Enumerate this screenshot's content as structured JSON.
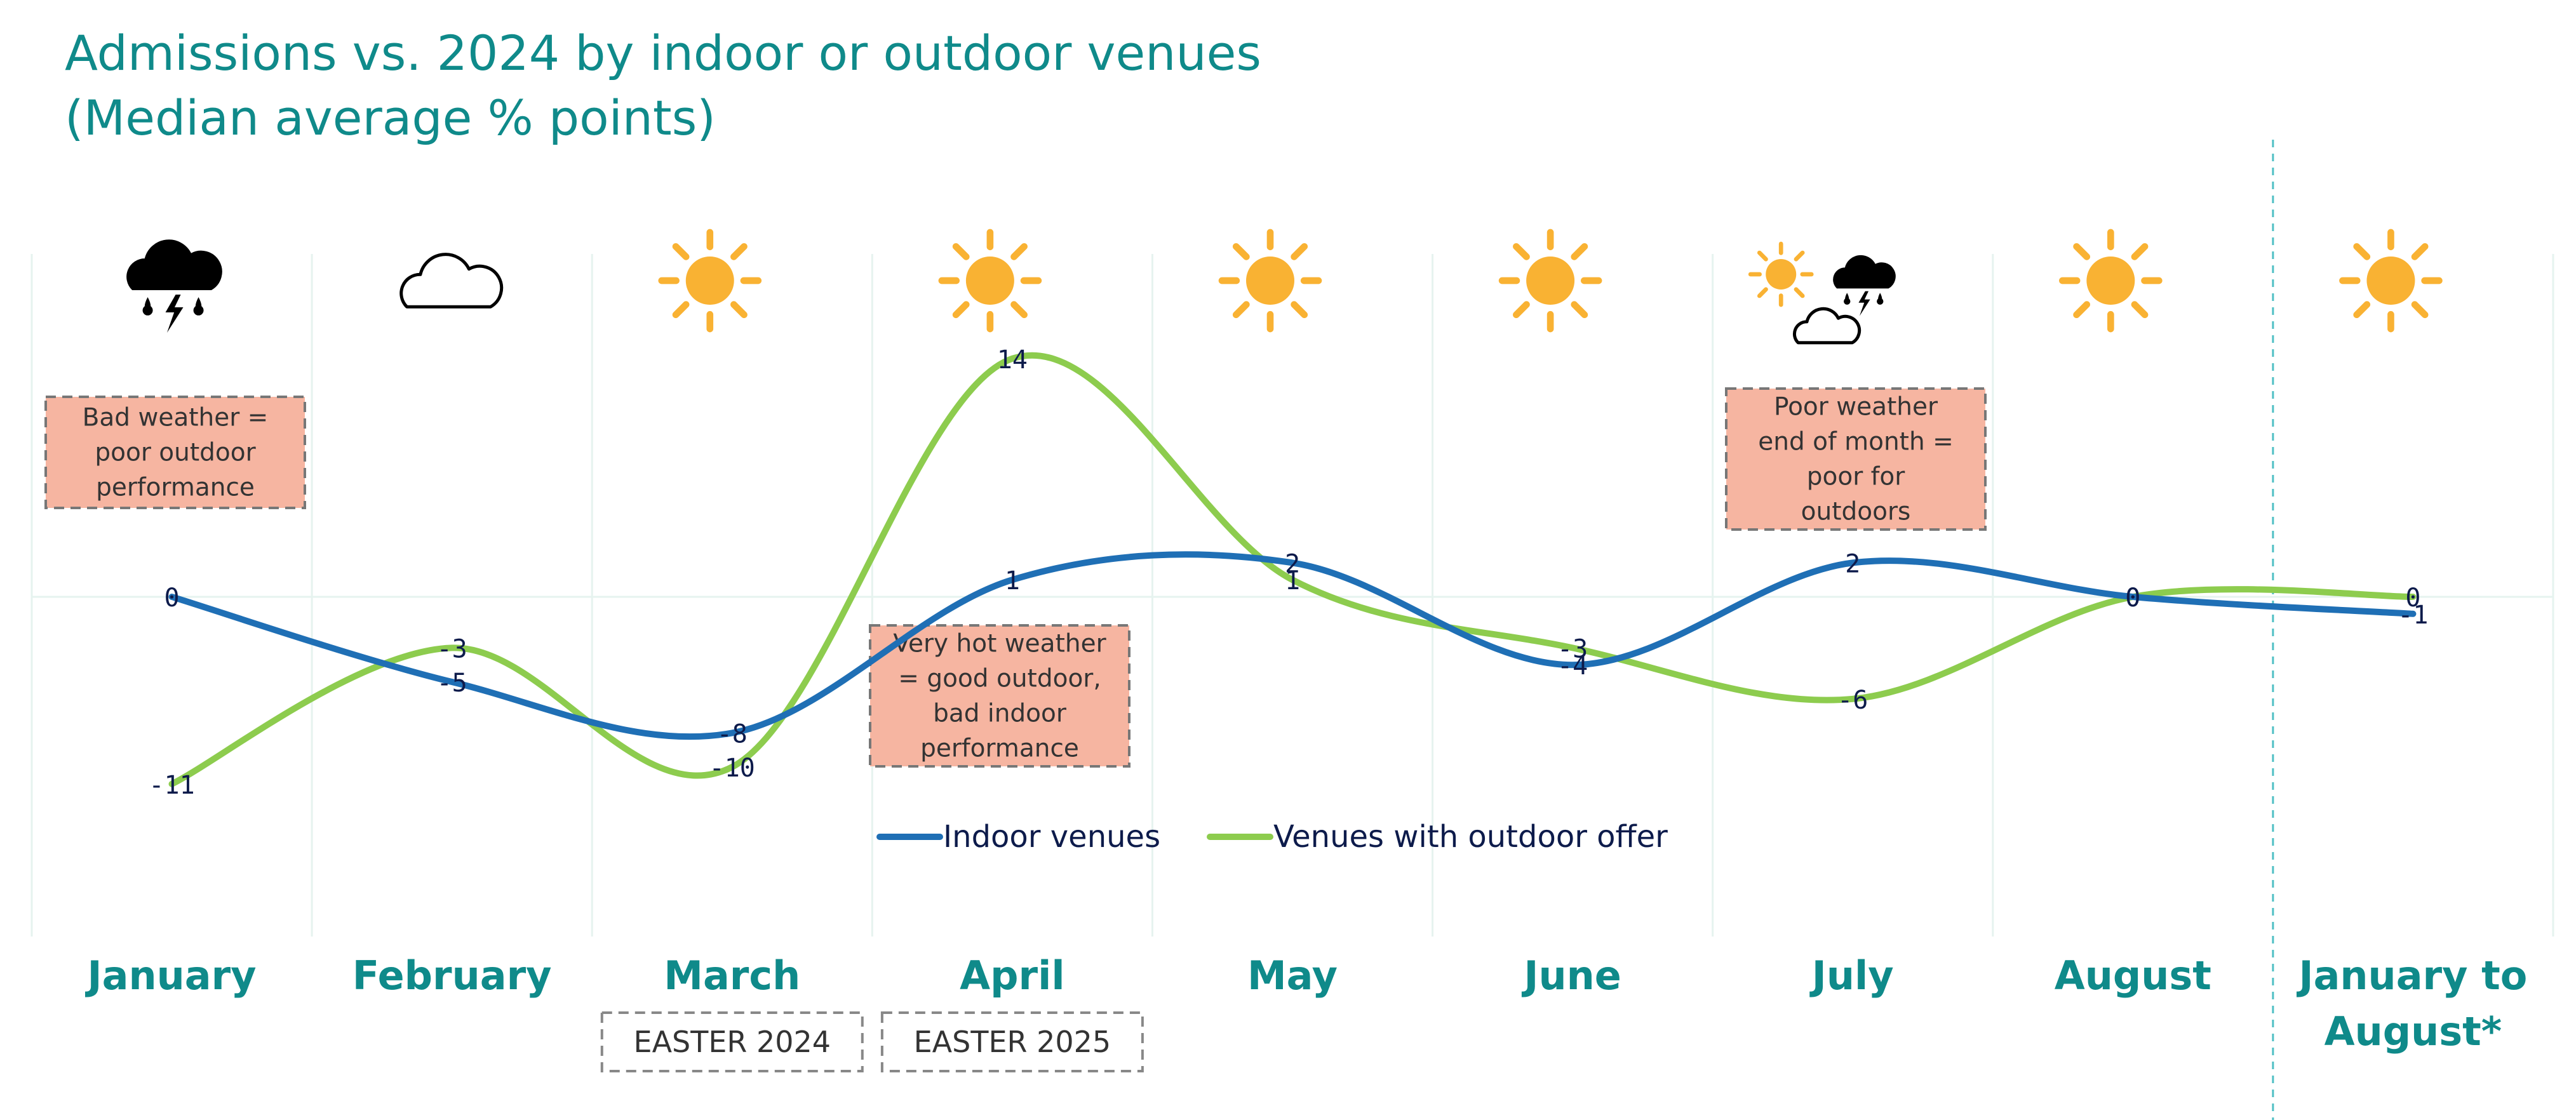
{
  "chart_data": {
    "type": "line",
    "title_line1": "Admissions vs. 2024 by indoor or outdoor venues",
    "title_line2": "(Median average % points)",
    "categories": [
      "January",
      "February",
      "March",
      "April",
      "May",
      "June",
      "July",
      "August",
      "January to|August*"
    ],
    "series": [
      {
        "name": "Indoor venues",
        "color": "#1f6fb5",
        "values": [
          0,
          -5,
          -8,
          1,
          2,
          -4,
          2,
          0,
          -1
        ],
        "labels": [
          "0",
          "-5",
          "-8",
          "1",
          "2",
          "-4",
          "2",
          "0",
          "-1"
        ]
      },
      {
        "name": "Venues with outdoor offer",
        "color": "#8dcc4e",
        "values": [
          -11,
          -3,
          -10,
          14,
          1,
          -3,
          -6,
          0,
          0
        ],
        "labels": [
          "-11",
          "-3",
          "-10",
          "14",
          "1",
          "-3",
          "-6",
          "0",
          "0"
        ]
      }
    ],
    "ylim": [
      -15,
      20
    ],
    "legend_position": "bottom-center",
    "weather_icons": [
      "rain-storm",
      "cloud",
      "sun",
      "sun",
      "sun",
      "sun",
      "sun-cloud-storm",
      "sun",
      "sun"
    ],
    "sun_color": "#f9b233",
    "callouts": [
      {
        "name": "callout-january",
        "month": "January",
        "lines": [
          "Bad weather =",
          "poor outdoor",
          "performance"
        ]
      },
      {
        "name": "callout-april",
        "month": "April",
        "lines": [
          "Very hot weather",
          "= good outdoor,",
          "bad indoor",
          "performance"
        ]
      },
      {
        "name": "callout-july",
        "month": "July",
        "lines": [
          "Poor weather",
          "end of month =",
          "poor for",
          "outdoors"
        ]
      }
    ],
    "easter_tags": [
      {
        "name": "easter-2024-tag",
        "month": "March",
        "label": "EASTER 2024"
      },
      {
        "name": "easter-2025-tag",
        "month": "April",
        "label": "EASTER 2025"
      }
    ]
  }
}
